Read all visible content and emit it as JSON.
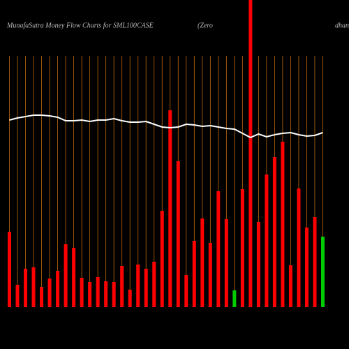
{
  "chart_data": {
    "type": "bar",
    "title": "MunafaSutra  Money Flow  Charts for SML100CASE",
    "subtitle": "(Zero",
    "annotation": "dhan",
    "categories": [
      null,
      null,
      null,
      null,
      null,
      null,
      null,
      null,
      null,
      null,
      null,
      null,
      null,
      null,
      null,
      null,
      null,
      null,
      null,
      null,
      null,
      null,
      null,
      null,
      null,
      null,
      null,
      null,
      null,
      null,
      null,
      null,
      null,
      null,
      null,
      null,
      null,
      null,
      null,
      null
    ],
    "series": [
      {
        "type": "bar",
        "colors": [
          "#ff0000",
          "#ff0000",
          "#ff0000",
          "#ff0000",
          "#ff0000",
          "#ff0000",
          "#ff0000",
          "#ff0000",
          "#ff0000",
          "#ff0000",
          "#ff0000",
          "#ff0000",
          "#ff0000",
          "#ff0000",
          "#ff0000",
          "#ff0000",
          "#ff0000",
          "#ff0000",
          "#ff0000",
          "#ff0000",
          "#ff0000",
          "#ff0000",
          "#ff0000",
          "#ff0000",
          "#ff0000",
          "#ff0000",
          "#ff0000",
          "#ff0000",
          "#00cc00",
          "#ff0000",
          "#ff0000",
          "#ff0000",
          "#ff0000",
          "#ff0000",
          "#ff0000",
          "#ff0000",
          "#ff0000",
          "#ff0000",
          "#ff0000",
          "#00cc00"
        ],
        "values": [
          108,
          32,
          55,
          57,
          29,
          41,
          52,
          90,
          85,
          42,
          36,
          43,
          37,
          36,
          59,
          25,
          61,
          55,
          65,
          138,
          282,
          209,
          46,
          95,
          127,
          92,
          166,
          126,
          24,
          169,
          440,
          122,
          190,
          215,
          237,
          60,
          170,
          114,
          129,
          101
        ]
      },
      {
        "type": "line",
        "color": "#ffffff",
        "values": [
          268,
          271,
          273,
          275,
          275,
          274,
          272,
          267,
          267,
          268,
          266,
          268,
          268,
          270,
          267,
          265,
          265,
          266,
          262,
          258,
          257,
          258,
          262,
          261,
          259,
          260,
          258,
          256,
          255,
          249,
          243,
          248,
          244,
          247,
          249,
          250,
          247,
          245,
          246,
          250
        ]
      }
    ],
    "ylim": [
      0,
      440
    ],
    "grid": true,
    "grid_color": "#c06a0c"
  }
}
